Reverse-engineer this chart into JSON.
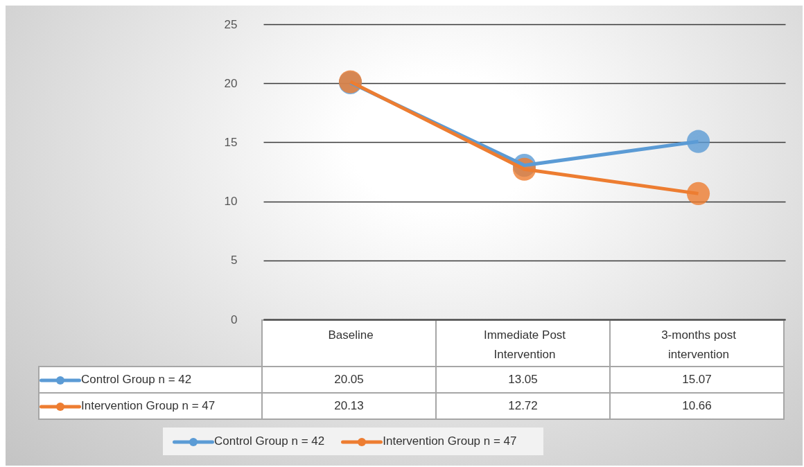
{
  "chart_data": {
    "type": "line",
    "categories": [
      "Baseline",
      "Immediate Post Intervention",
      "3-months post intervention"
    ],
    "series": [
      {
        "name": "Control Group n = 42",
        "color": "#5b9bd5",
        "values": [
          20.05,
          13.05,
          15.07
        ]
      },
      {
        "name": "Intervention Group n = 47",
        "color": "#ed7d31",
        "values": [
          20.13,
          12.72,
          10.66
        ]
      }
    ],
    "ylim": [
      0,
      25
    ],
    "yticks": [
      0,
      5,
      10,
      15,
      20,
      25
    ],
    "grid": "y",
    "legend": "bottom",
    "marker": "circle",
    "data_labels": true
  }
}
